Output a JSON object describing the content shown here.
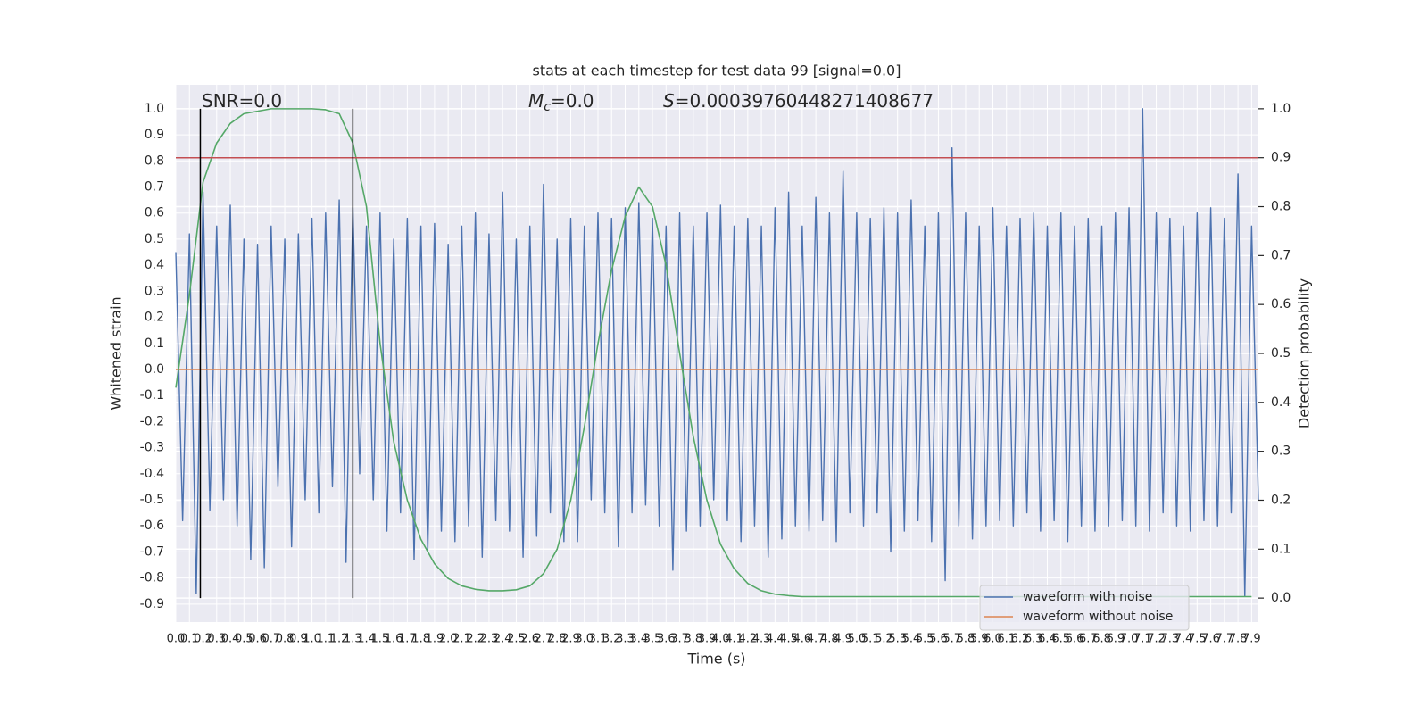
{
  "chart_data": {
    "type": "line",
    "title": "stats at each timestep for test data 99 [signal=0.0]",
    "x_label": "Time (s)",
    "y_label": "Whitened strain",
    "y2_label": "Detection probability",
    "annotations": [
      {
        "parts": [
          {
            "text": "SNR=0.0"
          }
        ]
      },
      {
        "parts": [
          {
            "text": "M",
            "italic": true
          },
          {
            "text": "c",
            "italic": true,
            "sub": true
          },
          {
            "text": "=0.0"
          }
        ]
      },
      {
        "parts": [
          {
            "text": "S",
            "italic": true
          },
          {
            "text": "=0.00039760448271408677"
          }
        ]
      }
    ],
    "grid": true,
    "legend": "lower right",
    "xlim": [
      0,
      7.95
    ],
    "ylim": [
      -0.969,
      1.092
    ],
    "y2lim": [
      -0.049,
      1.049
    ],
    "xticks": [
      {
        "value": 0,
        "label": "0.0"
      },
      0.1,
      0.2,
      0.3,
      0.4,
      0.5,
      0.6,
      0.7,
      0.8,
      0.9,
      {
        "value": 1,
        "label": "1.0"
      },
      1.1,
      1.2,
      1.3,
      1.4,
      1.5,
      1.6,
      1.7,
      1.8,
      1.9,
      {
        "value": 2,
        "label": "2.0"
      },
      2.1,
      2.2,
      2.3,
      2.4,
      2.5,
      2.6,
      2.7,
      2.8,
      2.9,
      {
        "value": 3,
        "label": "3.0"
      },
      3.1,
      3.2,
      3.3,
      3.4,
      3.5,
      3.6,
      3.7,
      3.8,
      3.9,
      {
        "value": 4,
        "label": "4.0"
      },
      4.1,
      4.2,
      4.3,
      4.4,
      4.5,
      4.6,
      4.7,
      4.8,
      4.9,
      {
        "value": 5,
        "label": "5.0"
      },
      5.1,
      5.2,
      5.3,
      5.4,
      5.5,
      5.6,
      5.7,
      5.8,
      5.9,
      {
        "value": 6,
        "label": "6.0"
      },
      6.1,
      6.2,
      6.3,
      6.4,
      6.5,
      6.6,
      6.7,
      6.8,
      6.9,
      {
        "value": 7,
        "label": "7.0"
      },
      7.1,
      7.2,
      7.3,
      7.4,
      7.5,
      7.6,
      7.7,
      7.8,
      7.9
    ],
    "yticks": [
      -0.9,
      -0.8,
      -0.7,
      -0.6,
      -0.5,
      -0.4,
      -0.3,
      -0.2,
      -0.1,
      {
        "value": 0,
        "label": "0.0"
      },
      0.1,
      0.2,
      0.3,
      0.4,
      0.5,
      0.6,
      0.7,
      0.8,
      0.9,
      {
        "value": 1,
        "label": "1.0"
      }
    ],
    "y2ticks": [
      {
        "value": 0,
        "label": "0.0"
      },
      0.1,
      0.2,
      0.3,
      0.4,
      0.5,
      0.6,
      0.7,
      0.8,
      0.9,
      {
        "value": 1,
        "label": "1.0"
      }
    ],
    "series": [
      {
        "name": "waveform with noise",
        "color": "#4c72b0",
        "x": [
          0,
          0.05,
          0.1,
          0.15,
          0.2,
          0.25,
          0.3,
          0.35,
          0.4,
          0.45,
          0.5,
          0.55,
          0.6,
          0.65,
          0.7,
          0.75,
          0.8,
          0.85,
          0.9,
          0.95,
          1,
          1.05,
          1.1,
          1.15,
          1.2,
          1.25,
          1.3,
          1.35,
          1.4,
          1.45,
          1.5,
          1.55,
          1.6,
          1.65,
          1.7,
          1.75,
          1.8,
          1.85,
          1.9,
          1.95,
          2,
          2.05,
          2.1,
          2.15,
          2.2,
          2.25,
          2.3,
          2.35,
          2.4,
          2.45,
          2.5,
          2.55,
          2.6,
          2.65,
          2.7,
          2.75,
          2.8,
          2.85,
          2.9,
          2.95,
          3,
          3.05,
          3.1,
          3.15,
          3.2,
          3.25,
          3.3,
          3.35,
          3.4,
          3.45,
          3.5,
          3.55,
          3.6,
          3.65,
          3.7,
          3.75,
          3.8,
          3.85,
          3.9,
          3.95,
          4,
          4.05,
          4.1,
          4.15,
          4.2,
          4.25,
          4.3,
          4.35,
          4.4,
          4.45,
          4.5,
          4.55,
          4.6,
          4.65,
          4.7,
          4.75,
          4.8,
          4.85,
          4.9,
          4.95,
          5,
          5.05,
          5.1,
          5.15,
          5.2,
          5.25,
          5.3,
          5.35,
          5.4,
          5.45,
          5.5,
          5.55,
          5.6,
          5.65,
          5.7,
          5.75,
          5.8,
          5.85,
          5.9,
          5.95,
          6,
          6.05,
          6.1,
          6.15,
          6.2,
          6.25,
          6.3,
          6.35,
          6.4,
          6.45,
          6.5,
          6.55,
          6.6,
          6.65,
          6.7,
          6.75,
          6.8,
          6.85,
          6.9,
          6.95,
          7,
          7.05,
          7.1,
          7.15,
          7.2,
          7.25,
          7.3,
          7.35,
          7.4,
          7.45,
          7.5,
          7.55,
          7.6,
          7.65,
          7.7,
          7.75,
          7.8,
          7.85,
          7.9,
          7.95
        ],
        "values": [
          0.45,
          -0.58,
          0.52,
          -0.86,
          0.68,
          -0.54,
          0.55,
          -0.5,
          0.63,
          -0.6,
          0.5,
          -0.73,
          0.48,
          -0.76,
          0.55,
          -0.45,
          0.5,
          -0.68,
          0.52,
          -0.5,
          0.58,
          -0.55,
          0.6,
          -0.45,
          0.65,
          -0.74,
          0.62,
          -0.4,
          0.55,
          -0.5,
          0.6,
          -0.62,
          0.5,
          -0.55,
          0.58,
          -0.73,
          0.55,
          -0.7,
          0.56,
          -0.62,
          0.48,
          -0.66,
          0.55,
          -0.6,
          0.6,
          -0.72,
          0.52,
          -0.58,
          0.68,
          -0.62,
          0.5,
          -0.72,
          0.55,
          -0.64,
          0.71,
          -0.55,
          0.5,
          -0.66,
          0.58,
          -0.66,
          0.55,
          -0.5,
          0.6,
          -0.55,
          0.58,
          -0.68,
          0.62,
          -0.55,
          0.64,
          -0.52,
          0.58,
          -0.6,
          0.55,
          -0.77,
          0.6,
          -0.62,
          0.55,
          -0.6,
          0.6,
          -0.5,
          0.63,
          -0.58,
          0.55,
          -0.66,
          0.58,
          -0.6,
          0.55,
          -0.72,
          0.62,
          -0.65,
          0.68,
          -0.6,
          0.55,
          -0.62,
          0.66,
          -0.58,
          0.6,
          -0.66,
          0.76,
          -0.55,
          0.6,
          -0.6,
          0.58,
          -0.55,
          0.62,
          -0.7,
          0.6,
          -0.62,
          0.65,
          -0.58,
          0.55,
          -0.66,
          0.6,
          -0.81,
          0.85,
          -0.6,
          0.6,
          -0.65,
          0.55,
          -0.6,
          0.62,
          -0.58,
          0.55,
          -0.6,
          0.58,
          -0.55,
          0.6,
          -0.62,
          0.55,
          -0.58,
          0.6,
          -0.66,
          0.55,
          -0.6,
          0.58,
          -0.62,
          0.55,
          -0.6,
          0.6,
          -0.58,
          0.62,
          -0.6,
          1.0,
          -0.62,
          0.6,
          -0.55,
          0.58,
          -0.6,
          0.55,
          -0.62,
          0.6,
          -0.58,
          0.62,
          -0.6,
          0.58,
          -0.55,
          0.75,
          -0.87,
          0.55,
          -0.5
        ]
      },
      {
        "name": "waveform without noise",
        "color": "#dd8452",
        "x": [
          0,
          7.95
        ],
        "values": [
          0,
          0
        ]
      },
      {
        "color": "#55a868",
        "axis": "y2",
        "x": [
          0,
          0.1,
          0.2,
          0.3,
          0.4,
          0.5,
          0.6,
          0.7,
          0.8,
          0.9,
          1,
          1.1,
          1.2,
          1.3,
          1.4,
          1.5,
          1.6,
          1.7,
          1.8,
          1.9,
          2,
          2.1,
          2.2,
          2.3,
          2.4,
          2.5,
          2.6,
          2.7,
          2.8,
          2.9,
          3,
          3.1,
          3.2,
          3.3,
          3.4,
          3.5,
          3.6,
          3.7,
          3.8,
          3.9,
          4,
          4.1,
          4.2,
          4.3,
          4.4,
          4.5,
          4.6,
          4.7,
          4.8,
          4.9,
          5,
          5.1,
          5.2,
          5.3,
          5.4,
          5.5,
          5.6,
          5.7,
          5.8,
          5.9,
          6,
          6.1,
          6.2,
          6.3,
          6.4,
          6.5,
          6.6,
          6.7,
          6.8,
          6.9,
          7,
          7.1,
          7.2,
          7.3,
          7.4,
          7.5,
          7.6,
          7.7,
          7.8,
          7.9
        ],
        "values": [
          0.43,
          0.62,
          0.85,
          0.93,
          0.97,
          0.99,
          0.995,
          1.0,
          1.0,
          1.0,
          1.0,
          0.998,
          0.99,
          0.93,
          0.8,
          0.52,
          0.32,
          0.2,
          0.12,
          0.07,
          0.04,
          0.025,
          0.018,
          0.015,
          0.015,
          0.017,
          0.025,
          0.05,
          0.1,
          0.2,
          0.35,
          0.52,
          0.67,
          0.78,
          0.84,
          0.8,
          0.68,
          0.5,
          0.33,
          0.2,
          0.11,
          0.06,
          0.03,
          0.015,
          0.008,
          0.005,
          0.003,
          0.003,
          0.003,
          0.003,
          0.003,
          0.003,
          0.003,
          0.003,
          0.003,
          0.003,
          0.003,
          0.003,
          0.003,
          0.003,
          0.003,
          0.003,
          0.003,
          0.003,
          0.003,
          0.003,
          0.003,
          0.003,
          0.003,
          0.003,
          0.003,
          0.003,
          0.003,
          0.003,
          0.003,
          0.003,
          0.003,
          0.003,
          0.003,
          0.003
        ]
      }
    ],
    "hlines": {
      "y": [
        0.9
      ],
      "axis": "y2",
      "color": "#c44e52"
    },
    "vlines": {
      "x": [
        0.18,
        1.3
      ],
      "ymin": 0,
      "ymax": 1,
      "axis": "y2",
      "color": "#000000"
    }
  }
}
